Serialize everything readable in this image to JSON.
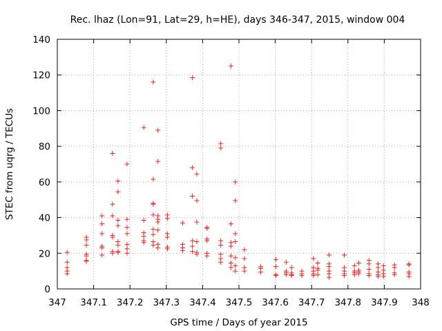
{
  "chart_data": {
    "type": "scatter",
    "title": "Rec. lhaz (Lon=91, Lat=29, h=HE), days 346-347, 2015, window 004",
    "xlabel": "GPS time / Days of year 2015",
    "ylabel": "STEC from uqrg / TECUs",
    "xlim": [
      347,
      348
    ],
    "ylim": [
      0,
      140
    ],
    "xticks": [
      "347",
      "347.1",
      "347.2",
      "347.3",
      "347.4",
      "347.5",
      "347.6",
      "347.7",
      "347.8",
      "347.9",
      "348"
    ],
    "yticks": [
      "0",
      "20",
      "40",
      "60",
      "80",
      "100",
      "120",
      "140"
    ],
    "grid": true,
    "marker": "plus",
    "color": "#e8231e",
    "points": [
      [
        347.027,
        20.5
      ],
      [
        347.027,
        15.0
      ],
      [
        347.027,
        12.0
      ],
      [
        347.027,
        10.0
      ],
      [
        347.027,
        8.5
      ],
      [
        347.08,
        29.0
      ],
      [
        347.08,
        27.5
      ],
      [
        347.08,
        24.5
      ],
      [
        347.08,
        19.5
      ],
      [
        347.08,
        18.5
      ],
      [
        347.08,
        16.0
      ],
      [
        347.08,
        15.5
      ],
      [
        347.123,
        41.0
      ],
      [
        347.123,
        36.5
      ],
      [
        347.123,
        31.0
      ],
      [
        347.123,
        24.0
      ],
      [
        347.123,
        23.0
      ],
      [
        347.123,
        19.0
      ],
      [
        347.152,
        76.0
      ],
      [
        347.152,
        47.5
      ],
      [
        347.152,
        41.0
      ],
      [
        347.152,
        30.0
      ],
      [
        347.152,
        29.0
      ],
      [
        347.152,
        21.0
      ],
      [
        347.152,
        20.0
      ],
      [
        347.167,
        60.5
      ],
      [
        347.167,
        54.5
      ],
      [
        347.167,
        38.5
      ],
      [
        347.167,
        35.5
      ],
      [
        347.167,
        26.5
      ],
      [
        347.167,
        24.5
      ],
      [
        347.167,
        21.0
      ],
      [
        347.167,
        20.5
      ],
      [
        347.192,
        70.0
      ],
      [
        347.192,
        39.0
      ],
      [
        347.192,
        34.5
      ],
      [
        347.192,
        31.0
      ],
      [
        347.192,
        25.0
      ],
      [
        347.192,
        22.5
      ],
      [
        347.192,
        20.0
      ],
      [
        347.238,
        90.5
      ],
      [
        347.238,
        38.5
      ],
      [
        347.238,
        31.5
      ],
      [
        347.238,
        29.5
      ],
      [
        347.238,
        27.0
      ],
      [
        347.238,
        26.0
      ],
      [
        347.264,
        116.0
      ],
      [
        347.264,
        61.5
      ],
      [
        347.264,
        48.0
      ],
      [
        347.264,
        47.5
      ],
      [
        347.264,
        41.5
      ],
      [
        347.264,
        33.5
      ],
      [
        347.264,
        30.5
      ],
      [
        347.264,
        26.5
      ],
      [
        347.264,
        24.5
      ],
      [
        347.277,
        89.0
      ],
      [
        347.277,
        71.5
      ],
      [
        347.277,
        41.0
      ],
      [
        347.277,
        39.0
      ],
      [
        347.277,
        37.5
      ],
      [
        347.277,
        33.0
      ],
      [
        347.277,
        25.0
      ],
      [
        347.277,
        23.0
      ],
      [
        347.303,
        41.5
      ],
      [
        347.303,
        39.5
      ],
      [
        347.303,
        31.0
      ],
      [
        347.303,
        29.0
      ],
      [
        347.303,
        23.5
      ],
      [
        347.303,
        22.5
      ],
      [
        347.345,
        37.0
      ],
      [
        347.345,
        25.0
      ],
      [
        347.345,
        23.0
      ],
      [
        347.345,
        21.5
      ],
      [
        347.372,
        118.5
      ],
      [
        347.372,
        68.0
      ],
      [
        347.372,
        52.0
      ],
      [
        347.372,
        27.0
      ],
      [
        347.372,
        24.0
      ],
      [
        347.372,
        21.0
      ],
      [
        347.384,
        64.5
      ],
      [
        347.384,
        49.5
      ],
      [
        347.384,
        37.5
      ],
      [
        347.384,
        26.5
      ],
      [
        347.384,
        20.5
      ],
      [
        347.384,
        19.5
      ],
      [
        347.412,
        34.5
      ],
      [
        347.412,
        34.0
      ],
      [
        347.412,
        28.0
      ],
      [
        347.412,
        27.0
      ],
      [
        347.412,
        20.0
      ],
      [
        347.412,
        18.5
      ],
      [
        347.45,
        81.5
      ],
      [
        347.45,
        79.0
      ],
      [
        347.45,
        27.0
      ],
      [
        347.45,
        24.5
      ],
      [
        347.45,
        19.5
      ],
      [
        347.45,
        17.0
      ],
      [
        347.45,
        15.0
      ],
      [
        347.478,
        125.0
      ],
      [
        347.478,
        36.5
      ],
      [
        347.478,
        26.0
      ],
      [
        347.478,
        24.0
      ],
      [
        347.478,
        18.5
      ],
      [
        347.478,
        14.5
      ],
      [
        347.478,
        12.0
      ],
      [
        347.49,
        60.0
      ],
      [
        347.49,
        49.5
      ],
      [
        347.49,
        31.0
      ],
      [
        347.49,
        26.5
      ],
      [
        347.49,
        17.5
      ],
      [
        347.49,
        13.0
      ],
      [
        347.49,
        10.0
      ],
      [
        347.515,
        22.0
      ],
      [
        347.515,
        17.0
      ],
      [
        347.515,
        12.0
      ],
      [
        347.515,
        10.0
      ],
      [
        347.56,
        12.5
      ],
      [
        347.56,
        11.5
      ],
      [
        347.56,
        9.5
      ],
      [
        347.602,
        16.5
      ],
      [
        347.602,
        12.5
      ],
      [
        347.602,
        8.0
      ],
      [
        347.602,
        7.5
      ],
      [
        347.63,
        15.0
      ],
      [
        347.63,
        10.0
      ],
      [
        347.63,
        9.0
      ],
      [
        347.63,
        8.0
      ],
      [
        347.645,
        12.0
      ],
      [
        347.645,
        9.0
      ],
      [
        347.645,
        8.0
      ],
      [
        347.645,
        7.5
      ],
      [
        347.673,
        10.0
      ],
      [
        347.673,
        8.5
      ],
      [
        347.673,
        7.5
      ],
      [
        347.705,
        17.0
      ],
      [
        347.705,
        12.0
      ],
      [
        347.705,
        10.0
      ],
      [
        347.705,
        8.5
      ],
      [
        347.705,
        7.5
      ],
      [
        347.717,
        14.5
      ],
      [
        347.717,
        11.5
      ],
      [
        347.717,
        10.5
      ],
      [
        347.717,
        8.0
      ],
      [
        347.748,
        19.0
      ],
      [
        347.748,
        14.0
      ],
      [
        347.748,
        12.5
      ],
      [
        347.748,
        10.0
      ],
      [
        347.748,
        8.5
      ],
      [
        347.748,
        6.5
      ],
      [
        347.79,
        19.0
      ],
      [
        347.79,
        12.0
      ],
      [
        347.79,
        10.0
      ],
      [
        347.79,
        8.5
      ],
      [
        347.79,
        7.5
      ],
      [
        347.818,
        13.0
      ],
      [
        347.818,
        10.0
      ],
      [
        347.818,
        9.0
      ],
      [
        347.818,
        8.0
      ],
      [
        347.83,
        14.5
      ],
      [
        347.83,
        10.5
      ],
      [
        347.83,
        9.5
      ],
      [
        347.83,
        8.5
      ],
      [
        347.858,
        16.0
      ],
      [
        347.858,
        14.0
      ],
      [
        347.858,
        11.0
      ],
      [
        347.858,
        8.5
      ],
      [
        347.858,
        7.5
      ],
      [
        347.883,
        14.0
      ],
      [
        347.883,
        12.0
      ],
      [
        347.883,
        9.5
      ],
      [
        347.883,
        8.0
      ],
      [
        347.883,
        7.0
      ],
      [
        347.898,
        13.0
      ],
      [
        347.898,
        10.5
      ],
      [
        347.898,
        8.5
      ],
      [
        347.898,
        7.0
      ],
      [
        347.928,
        13.5
      ],
      [
        347.928,
        12.0
      ],
      [
        347.928,
        9.0
      ],
      [
        347.928,
        8.0
      ],
      [
        347.968,
        14.0
      ],
      [
        347.968,
        13.5
      ],
      [
        347.968,
        9.5
      ],
      [
        347.968,
        8.5
      ],
      [
        347.968,
        7.0
      ]
    ]
  }
}
